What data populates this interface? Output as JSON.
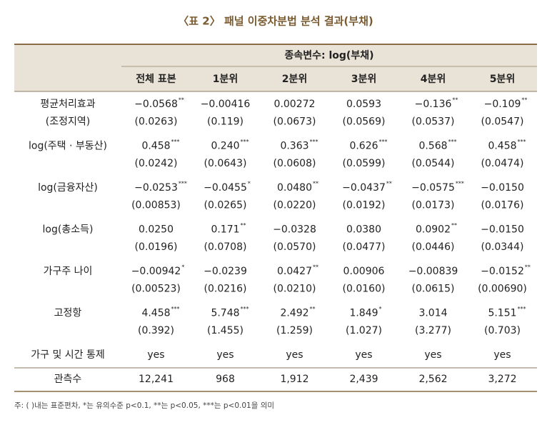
{
  "title": "〈표 2〉 패널 이중차분법 분석 결과(부채)",
  "table": {
    "dependent": "종속변수: log(부채)",
    "columns": [
      "전체 표본",
      "1분위",
      "2분위",
      "3분위",
      "4분위",
      "5분위"
    ],
    "rows": [
      {
        "label": [
          "평균처리효과",
          "(조정지역)"
        ],
        "cells": [
          {
            "coef": "−0.0568",
            "stars": "**",
            "se": "(0.0263)"
          },
          {
            "coef": "−0.00416",
            "se": "(0.119)"
          },
          {
            "coef": "0.00272",
            "se": "(0.0673)"
          },
          {
            "coef": "0.0593",
            "se": "(0.0569)"
          },
          {
            "coef": "−0.136",
            "stars": "**",
            "se": "(0.0537)"
          },
          {
            "coef": "−0.109",
            "stars": "**",
            "se": "(0.0547)"
          }
        ]
      },
      {
        "label": [
          "log(주택 · 부동산)"
        ],
        "cells": [
          {
            "coef": "0.458",
            "stars": "***",
            "se": "(0.0242)"
          },
          {
            "coef": "0.240",
            "stars": "***",
            "se": "(0.0643)"
          },
          {
            "coef": "0.363",
            "stars": "***",
            "se": "(0.0608)"
          },
          {
            "coef": "0.626",
            "stars": "***",
            "se": "(0.0599)"
          },
          {
            "coef": "0.568",
            "stars": "***",
            "se": "(0.0544)"
          },
          {
            "coef": "0.458",
            "stars": "***",
            "se": "(0.0474)"
          }
        ]
      },
      {
        "label": [
          "log(금융자산)"
        ],
        "cells": [
          {
            "coef": "−0.0253",
            "stars": "***",
            "se": "(0.00853)"
          },
          {
            "coef": "−0.0455",
            "stars": "*",
            "se": "(0.0265)"
          },
          {
            "coef": "0.0480",
            "stars": "**",
            "se": "(0.0220)"
          },
          {
            "coef": "−0.0437",
            "stars": "**",
            "se": "(0.0192)"
          },
          {
            "coef": "−0.0575",
            "stars": "***",
            "se": "(0.0173)"
          },
          {
            "coef": "−0.0150",
            "se": "(0.0176)"
          }
        ]
      },
      {
        "label": [
          "log(총소득)"
        ],
        "cells": [
          {
            "coef": "0.0250",
            "se": "(0.0196)"
          },
          {
            "coef": "0.171",
            "stars": "**",
            "se": "(0.0708)"
          },
          {
            "coef": "−0.0328",
            "se": "(0.0570)"
          },
          {
            "coef": "0.0380",
            "se": "(0.0477)"
          },
          {
            "coef": "0.0902",
            "stars": "**",
            "se": "(0.0446)"
          },
          {
            "coef": "−0.0150",
            "se": "(0.0344)"
          }
        ]
      },
      {
        "label": [
          "가구주 나이"
        ],
        "cells": [
          {
            "coef": "−0.00942",
            "stars": "*",
            "se": "(0.00523)"
          },
          {
            "coef": "−0.0239",
            "se": "(0.0216)"
          },
          {
            "coef": "0.0427",
            "stars": "**",
            "se": "(0.0210)"
          },
          {
            "coef": "0.00906",
            "se": "(0.0160)"
          },
          {
            "coef": "−0.00839",
            "se": "(0.0615)"
          },
          {
            "coef": "−0.0152",
            "stars": "**",
            "se": "(0.00690)"
          }
        ]
      },
      {
        "label": [
          "고정항"
        ],
        "cells": [
          {
            "coef": "4.458",
            "stars": "***",
            "se": "(0.392)"
          },
          {
            "coef": "5.748",
            "stars": "***",
            "se": "(1.455)"
          },
          {
            "coef": "2.492",
            "stars": "**",
            "se": "(1.259)"
          },
          {
            "coef": "1.849",
            "stars": "*",
            "se": "(1.027)"
          },
          {
            "coef": "3.014",
            "se": "(3.277)"
          },
          {
            "coef": "5.151",
            "stars": "***",
            "se": "(0.703)"
          }
        ]
      },
      {
        "label": [
          "가구 및 시간 통제"
        ],
        "cells": [
          {
            "coef": "yes"
          },
          {
            "coef": "yes"
          },
          {
            "coef": "yes"
          },
          {
            "coef": "yes"
          },
          {
            "coef": "yes"
          },
          {
            "coef": "yes"
          }
        ]
      },
      {
        "label": [
          "관측수"
        ],
        "cells": [
          {
            "coef": "12,241"
          },
          {
            "coef": "968"
          },
          {
            "coef": "1,912"
          },
          {
            "coef": "2,439"
          },
          {
            "coef": "2,562"
          },
          {
            "coef": "3,272"
          }
        ]
      }
    ]
  },
  "note": "주: ( )내는 표준편차, *는 유의수준 p<0.1, **는 p<0.05, ***는 p<0.01을 의미"
}
